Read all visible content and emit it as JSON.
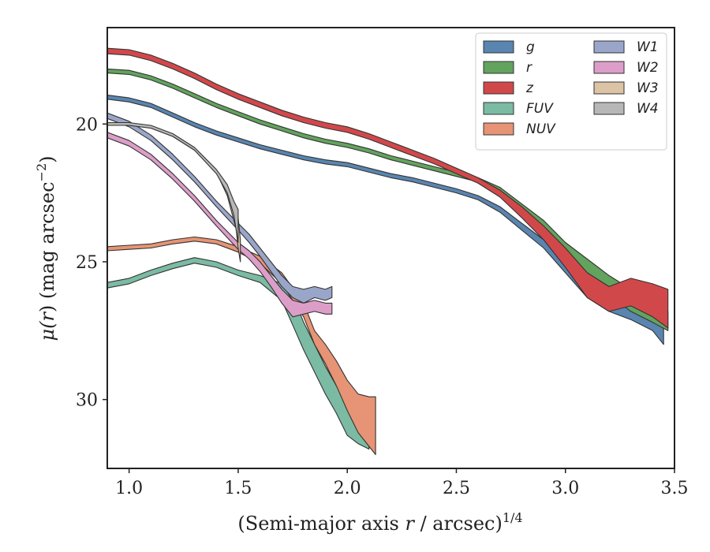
{
  "chart_data": {
    "type": "area",
    "title": "",
    "xlabel": "(Semi-major axis r / arcsec)",
    "xlabel_parts": {
      "pre": "(Semi-major axis ",
      "var": "r",
      "post": " / arcsec)",
      "sup": "1/4"
    },
    "ylabel": "μ(r) (mag arcsec⁻²)",
    "ylabel_parts": {
      "mu": "μ(",
      "var": "r",
      "close": ") (mag arcsec",
      "sup": "−2",
      "end": ")"
    },
    "xlim": [
      0.9,
      3.5
    ],
    "ylim": [
      32.5,
      16.5
    ],
    "y_inverted": true,
    "xticks": [
      1.0,
      1.5,
      2.0,
      2.5,
      3.0,
      3.5
    ],
    "xtick_labels": [
      "1.0",
      "1.5",
      "2.0",
      "2.5",
      "3.0",
      "3.5"
    ],
    "yticks": [
      20,
      25,
      30
    ],
    "ytick_labels": [
      "20",
      "25",
      "30"
    ],
    "grid": false,
    "legend_position": "top-right",
    "legend_columns": 2,
    "series": [
      {
        "name": "g",
        "color": "#5985b0",
        "x": [
          0.9,
          1.0,
          1.1,
          1.2,
          1.3,
          1.4,
          1.5,
          1.6,
          1.7,
          1.8,
          1.9,
          2.0,
          2.1,
          2.2,
          2.3,
          2.4,
          2.5,
          2.6,
          2.7,
          2.8,
          2.9,
          3.0,
          3.1,
          3.2,
          3.3,
          3.4,
          3.45
        ],
        "lower": [
          18.95,
          19.05,
          19.25,
          19.6,
          19.95,
          20.25,
          20.5,
          20.75,
          20.95,
          21.15,
          21.3,
          21.4,
          21.6,
          21.8,
          21.95,
          22.15,
          22.35,
          22.6,
          23.0,
          23.6,
          24.2,
          25.0,
          25.7,
          26.2,
          26.5,
          26.8,
          27.0
        ],
        "upper": [
          19.1,
          19.2,
          19.4,
          19.75,
          20.1,
          20.4,
          20.65,
          20.9,
          21.1,
          21.3,
          21.45,
          21.55,
          21.75,
          21.95,
          22.1,
          22.3,
          22.5,
          22.75,
          23.2,
          23.85,
          24.5,
          25.4,
          26.3,
          26.8,
          27.1,
          27.5,
          28.0
        ]
      },
      {
        "name": "r",
        "color": "#62a35e",
        "x": [
          0.9,
          1.0,
          1.1,
          1.2,
          1.3,
          1.4,
          1.5,
          1.6,
          1.7,
          1.8,
          1.9,
          2.0,
          2.1,
          2.2,
          2.3,
          2.4,
          2.5,
          2.6,
          2.7,
          2.8,
          2.9,
          3.0,
          3.1,
          3.2,
          3.3,
          3.4,
          3.47
        ],
        "lower": [
          18.0,
          18.05,
          18.25,
          18.55,
          18.9,
          19.25,
          19.55,
          19.85,
          20.1,
          20.35,
          20.55,
          20.7,
          20.9,
          21.15,
          21.35,
          21.55,
          21.75,
          21.95,
          22.3,
          22.9,
          23.5,
          24.3,
          24.9,
          25.5,
          26.0,
          26.5,
          26.8
        ],
        "upper": [
          18.15,
          18.2,
          18.4,
          18.7,
          19.05,
          19.4,
          19.7,
          20.0,
          20.25,
          20.5,
          20.7,
          20.85,
          21.05,
          21.3,
          21.5,
          21.7,
          21.9,
          22.1,
          22.5,
          23.2,
          23.9,
          24.8,
          25.6,
          26.2,
          26.8,
          27.2,
          27.5
        ]
      },
      {
        "name": "z",
        "color": "#d1484b",
        "x": [
          0.9,
          1.0,
          1.1,
          1.2,
          1.3,
          1.4,
          1.5,
          1.6,
          1.7,
          1.8,
          1.9,
          2.0,
          2.1,
          2.2,
          2.3,
          2.4,
          2.5,
          2.6,
          2.7,
          2.8,
          2.9,
          3.0,
          3.1,
          3.2,
          3.3,
          3.4,
          3.47
        ],
        "lower": [
          17.25,
          17.3,
          17.5,
          17.8,
          18.15,
          18.55,
          18.9,
          19.2,
          19.5,
          19.75,
          19.95,
          20.1,
          20.35,
          20.65,
          20.95,
          21.25,
          21.6,
          21.95,
          22.4,
          23.0,
          23.7,
          24.5,
          25.4,
          25.9,
          25.6,
          25.8,
          26.0
        ],
        "upper": [
          17.45,
          17.5,
          17.7,
          18.0,
          18.35,
          18.75,
          19.1,
          19.4,
          19.7,
          19.95,
          20.15,
          20.3,
          20.55,
          20.85,
          21.15,
          21.45,
          21.8,
          22.15,
          22.65,
          23.4,
          24.2,
          25.2,
          26.3,
          26.8,
          26.6,
          27.0,
          27.4
        ]
      },
      {
        "name": "FUV",
        "color": "#7bbba3",
        "x": [
          0.9,
          1.0,
          1.1,
          1.2,
          1.3,
          1.4,
          1.5,
          1.6,
          1.7,
          1.75,
          1.8,
          1.85,
          1.9,
          1.95,
          2.0,
          2.05,
          2.1
        ],
        "lower": [
          25.75,
          25.6,
          25.3,
          25.05,
          24.85,
          25.0,
          25.3,
          25.5,
          25.8,
          26.2,
          27.2,
          28.0,
          28.8,
          29.5,
          29.8,
          29.9,
          30.0
        ],
        "upper": [
          25.95,
          25.8,
          25.5,
          25.25,
          25.05,
          25.2,
          25.5,
          25.75,
          26.4,
          27.3,
          28.2,
          29.0,
          29.8,
          30.5,
          31.3,
          31.6,
          31.8
        ]
      },
      {
        "name": "NUV",
        "color": "#e69475",
        "x": [
          0.9,
          1.0,
          1.1,
          1.2,
          1.3,
          1.4,
          1.5,
          1.6,
          1.7,
          1.8,
          1.85,
          1.9,
          1.95,
          2.0,
          2.05,
          2.1,
          2.13
        ],
        "lower": [
          24.45,
          24.4,
          24.35,
          24.2,
          24.1,
          24.2,
          24.45,
          24.8,
          25.4,
          26.5,
          27.5,
          28.0,
          28.6,
          29.3,
          29.8,
          29.9,
          29.9
        ],
        "upper": [
          24.6,
          24.55,
          24.5,
          24.35,
          24.25,
          24.35,
          24.65,
          25.05,
          25.8,
          27.0,
          28.0,
          28.7,
          29.5,
          30.4,
          31.2,
          31.7,
          32.0
        ]
      },
      {
        "name": "W1",
        "color": "#9aa6c9",
        "x": [
          0.9,
          1.0,
          1.1,
          1.2,
          1.3,
          1.4,
          1.5,
          1.55,
          1.6,
          1.65,
          1.7,
          1.75,
          1.8,
          1.85,
          1.9,
          1.93
        ],
        "lower": [
          19.6,
          19.9,
          20.4,
          21.1,
          21.9,
          22.8,
          23.6,
          24.0,
          24.5,
          25.0,
          25.5,
          25.9,
          26.0,
          25.9,
          26.0,
          25.9
        ],
        "upper": [
          19.8,
          20.1,
          20.6,
          21.3,
          22.1,
          23.0,
          23.85,
          24.3,
          24.8,
          25.35,
          25.9,
          26.3,
          26.5,
          26.3,
          26.4,
          26.3
        ]
      },
      {
        "name": "W2",
        "color": "#dc9ec8",
        "x": [
          0.9,
          1.0,
          1.1,
          1.2,
          1.3,
          1.4,
          1.5,
          1.55,
          1.6,
          1.65,
          1.7,
          1.75,
          1.8,
          1.85,
          1.9,
          1.93
        ],
        "lower": [
          20.3,
          20.6,
          21.1,
          21.8,
          22.6,
          23.5,
          24.3,
          24.6,
          25.0,
          25.5,
          26.0,
          26.4,
          26.5,
          26.4,
          26.5,
          26.5
        ],
        "upper": [
          20.5,
          20.8,
          21.3,
          22.0,
          22.8,
          23.7,
          24.55,
          24.9,
          25.35,
          25.9,
          26.5,
          27.0,
          26.9,
          26.8,
          26.9,
          26.9
        ]
      },
      {
        "name": "W3",
        "color": "#dcc3a5",
        "x": [
          0.9,
          1.0,
          1.1,
          1.2,
          1.3,
          1.4,
          1.45,
          1.49,
          1.5,
          1.51
        ],
        "lower": [
          20.0,
          20.0,
          20.1,
          20.4,
          20.9,
          21.7,
          22.3,
          23.0,
          23.4,
          24.2
        ],
        "upper": [
          20.05,
          20.05,
          20.15,
          20.45,
          20.95,
          21.75,
          22.6,
          23.8,
          24.5,
          25.0
        ]
      },
      {
        "name": "W4",
        "color": "#b7b7b7",
        "x": [
          0.9,
          1.0,
          1.1,
          1.2,
          1.3,
          1.4,
          1.45,
          1.48,
          1.5
        ],
        "lower": [
          19.95,
          19.95,
          20.05,
          20.35,
          20.85,
          21.65,
          22.2,
          22.8,
          23.1
        ],
        "upper": [
          20.05,
          20.05,
          20.15,
          20.45,
          20.95,
          21.8,
          22.5,
          23.3,
          24.3
        ]
      }
    ]
  }
}
